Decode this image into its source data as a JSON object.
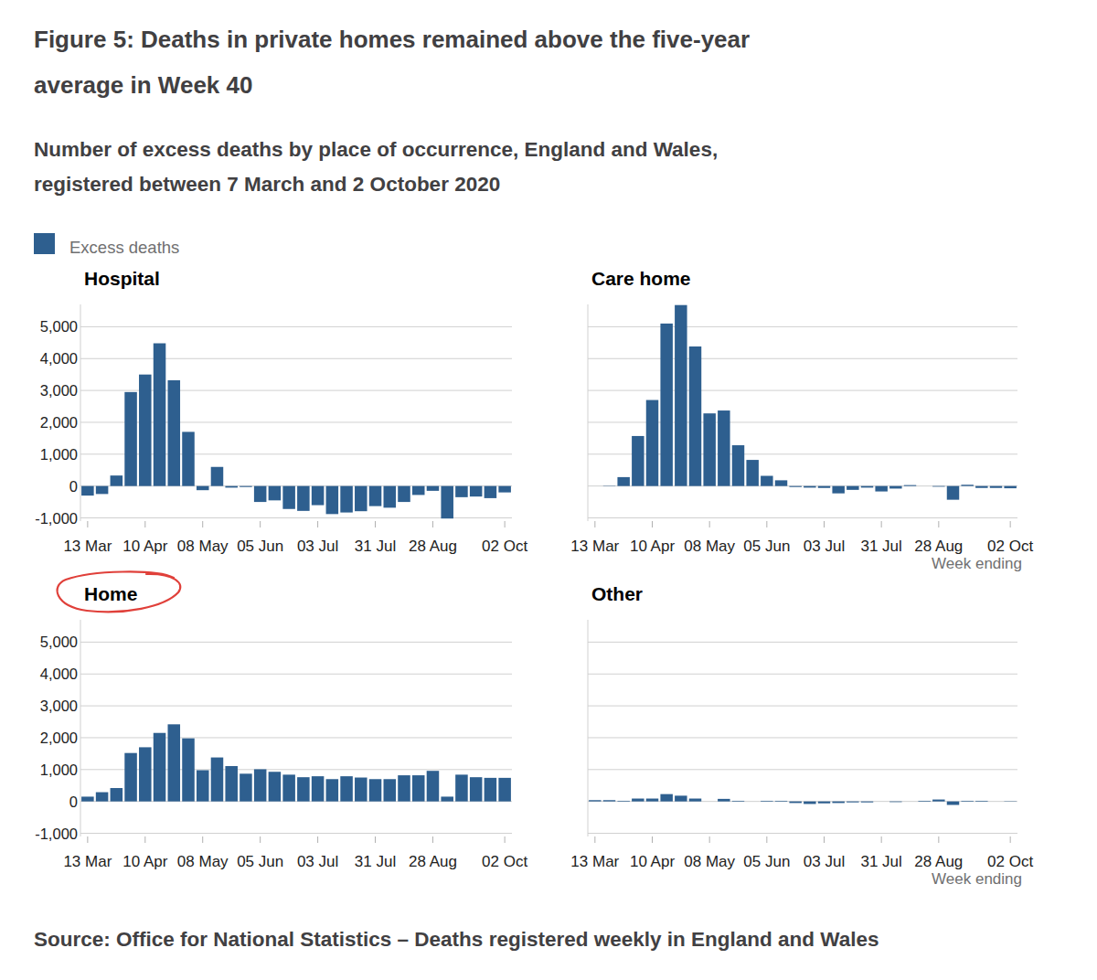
{
  "title": [
    "Figure 5: Deaths in private homes remained above the five-year",
    "average in Week 40"
  ],
  "subtitle": [
    "Number of excess deaths by place of occurrence, England and Wales,",
    "registered between 7 March and 2 October 2020"
  ],
  "legend_text": "Excess deaths",
  "source": "Source: Office for National Statistics – Deaths registered weekly in England and Wales",
  "chart_data": [
    {
      "type": "bar",
      "title": "Hospital",
      "categories": [
        "13 Mar",
        null,
        null,
        null,
        "10 Apr",
        null,
        null,
        null,
        "08 May",
        null,
        null,
        null,
        "05 Jun",
        null,
        null,
        null,
        "03 Jul",
        null,
        null,
        null,
        "31 Jul",
        null,
        null,
        null,
        "28 Aug",
        null,
        null,
        null,
        null,
        "02 Oct"
      ],
      "values": [
        -300,
        -250,
        330,
        2950,
        3500,
        4480,
        3320,
        1700,
        -130,
        600,
        -50,
        -30,
        -500,
        -450,
        -720,
        -780,
        -600,
        -880,
        -830,
        -790,
        -630,
        -680,
        -500,
        -280,
        -150,
        -1020,
        -350,
        -330,
        -380,
        -200
      ],
      "color": "#2e5f8f",
      "ylim": [
        -1100,
        5700
      ],
      "yticks": [
        {
          "value": -1000,
          "label": "-1,000"
        },
        0,
        {
          "value": 1000,
          "label": "1,000"
        },
        {
          "value": 2000,
          "label": "2,000"
        },
        {
          "value": 3000,
          "label": "3,000"
        },
        {
          "value": 4000,
          "label": "4,000"
        },
        {
          "value": 5000,
          "label": "5,000"
        }
      ],
      "grid": true
    },
    {
      "type": "bar",
      "title": "Care home",
      "categories": [
        "13 Mar",
        null,
        null,
        null,
        "10 Apr",
        null,
        null,
        null,
        "08 May",
        null,
        null,
        null,
        "05 Jun",
        null,
        null,
        null,
        "03 Jul",
        null,
        null,
        null,
        "31 Jul",
        null,
        null,
        null,
        "28 Aug",
        null,
        null,
        null,
        null,
        "02 Oct"
      ],
      "values": [
        0,
        -10,
        280,
        1570,
        2700,
        5100,
        5680,
        4380,
        2280,
        2370,
        1280,
        820,
        320,
        180,
        -30,
        -50,
        -60,
        -230,
        -120,
        -50,
        -170,
        -80,
        30,
        0,
        -20,
        -430,
        40,
        -60,
        -60,
        -70
      ],
      "color": "#2e5f8f",
      "ylim": [
        -1100,
        5700
      ],
      "yticks": [
        {
          "value": -1000,
          "label": "-1,000"
        },
        0,
        {
          "value": 1000,
          "label": "1,000"
        },
        {
          "value": 2000,
          "label": "2,000"
        },
        {
          "value": 3000,
          "label": "3,000"
        },
        {
          "value": 4000,
          "label": "4,000"
        },
        {
          "value": 5000,
          "label": "5,000"
        }
      ],
      "grid": true,
      "tick_labels": "x",
      "x_label": "Week ending"
    },
    {
      "type": "bar",
      "title": "Home",
      "categories": [
        "13 Mar",
        null,
        null,
        null,
        "10 Apr",
        null,
        null,
        null,
        "08 May",
        null,
        null,
        null,
        "05 Jun",
        null,
        null,
        null,
        "03 Jul",
        null,
        null,
        null,
        "31 Jul",
        null,
        null,
        null,
        "28 Aug",
        null,
        null,
        null,
        null,
        "02 Oct"
      ],
      "values": [
        150,
        290,
        420,
        1520,
        1700,
        2150,
        2420,
        1980,
        980,
        1380,
        1110,
        870,
        1010,
        930,
        840,
        760,
        790,
        700,
        790,
        750,
        700,
        700,
        820,
        820,
        960,
        150,
        840,
        760,
        740,
        740
      ],
      "color": "#2e5f8f",
      "ylim": [
        -1100,
        5700
      ],
      "yticks": [
        {
          "value": -1000,
          "label": "-1,000"
        },
        0,
        {
          "value": 1000,
          "label": "1,000"
        },
        {
          "value": 2000,
          "label": "2,000"
        },
        {
          "value": 3000,
          "label": "3,000"
        },
        {
          "value": 4000,
          "label": "4,000"
        },
        {
          "value": 5000,
          "label": "5,000"
        }
      ],
      "grid": true
    },
    {
      "type": "bar",
      "title": "Other",
      "categories": [
        "13 Mar",
        null,
        null,
        null,
        "10 Apr",
        null,
        null,
        null,
        "08 May",
        null,
        null,
        null,
        "05 Jun",
        null,
        null,
        null,
        "03 Jul",
        null,
        null,
        null,
        "31 Jul",
        null,
        null,
        null,
        "28 Aug",
        null,
        null,
        null,
        null,
        "02 Oct"
      ],
      "values": [
        40,
        40,
        20,
        90,
        90,
        230,
        180,
        90,
        0,
        80,
        20,
        0,
        20,
        20,
        -50,
        -80,
        -60,
        -50,
        -30,
        -30,
        0,
        -20,
        0,
        20,
        60,
        -110,
        20,
        20,
        0,
        10
      ],
      "color": "#2e5f8f",
      "ylim": [
        -1100,
        5700
      ],
      "yticks": [
        {
          "value": -1000,
          "label": "-1,000"
        },
        0,
        {
          "value": 1000,
          "label": "1,000"
        },
        {
          "value": 2000,
          "label": "2,000"
        },
        {
          "value": 3000,
          "label": "3,000"
        },
        {
          "value": 4000,
          "label": "4,000"
        },
        {
          "value": 5000,
          "label": "5,000"
        }
      ],
      "grid": true,
      "tick_labels": "x",
      "x_label": "Week ending"
    }
  ]
}
